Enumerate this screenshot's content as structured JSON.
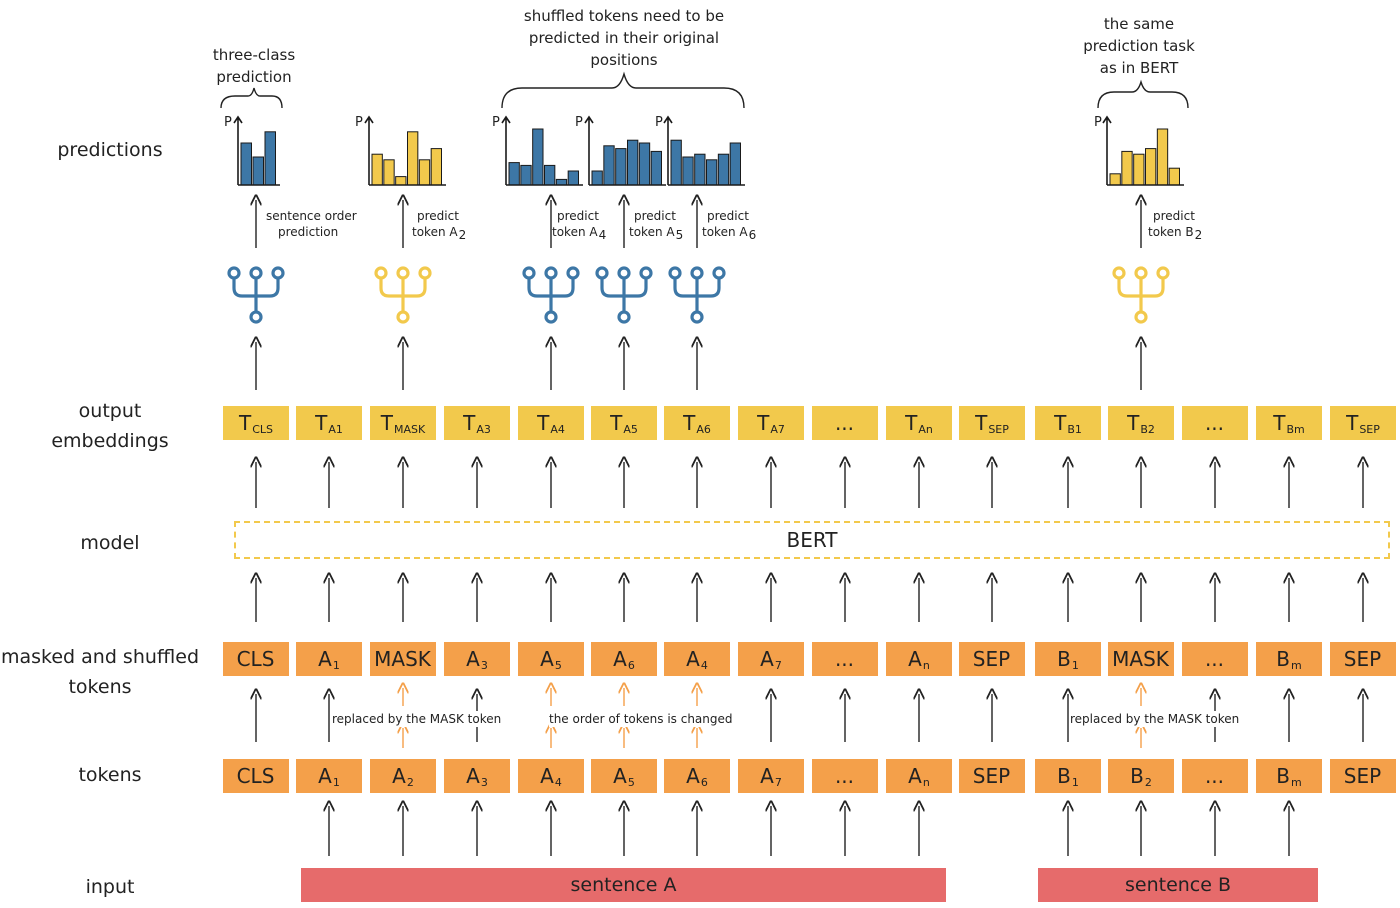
{
  "row_labels": {
    "predictions": "predictions",
    "output": [
      "output",
      "embeddings"
    ],
    "model": "model",
    "masked": [
      "masked and shuffled",
      "tokens"
    ],
    "tokens": "tokens",
    "input": "input"
  },
  "notes": {
    "three_class": [
      "three-class",
      "prediction"
    ],
    "shuffled": [
      "shuffled tokens need to be",
      "predicted in their original",
      "positions"
    ],
    "same_task": [
      "the same",
      "prediction task",
      "as in BERT"
    ]
  },
  "head_labels": {
    "sop": [
      "sentence order",
      "prediction"
    ],
    "a2": [
      "predict",
      "token A",
      "2"
    ],
    "a4": [
      "predict",
      "token A",
      "4"
    ],
    "a5": [
      "predict",
      "token A",
      "5"
    ],
    "a6": [
      "predict",
      "token A",
      "6"
    ],
    "b2": [
      "predict",
      "token B",
      "2"
    ]
  },
  "p_label": "P",
  "model_label": "BERT",
  "output_embeddings": [
    {
      "main": "T",
      "sub": "CLS"
    },
    {
      "main": "T",
      "sub": "A1"
    },
    {
      "main": "T",
      "sub": "MASK"
    },
    {
      "main": "T",
      "sub": "A3"
    },
    {
      "main": "T",
      "sub": "A4"
    },
    {
      "main": "T",
      "sub": "A5"
    },
    {
      "main": "T",
      "sub": "A6"
    },
    {
      "main": "T",
      "sub": "A7"
    },
    {
      "main": "...",
      "sub": ""
    },
    {
      "main": "T",
      "sub": "An"
    },
    {
      "main": "T",
      "sub": "SEP"
    },
    {
      "main": "T",
      "sub": "B1"
    },
    {
      "main": "T",
      "sub": "B2"
    },
    {
      "main": "...",
      "sub": ""
    },
    {
      "main": "T",
      "sub": "Bm"
    },
    {
      "main": "T",
      "sub": "SEP"
    }
  ],
  "masked_tokens": [
    {
      "main": "CLS",
      "sub": ""
    },
    {
      "main": "A",
      "sub": "1"
    },
    {
      "main": "MASK",
      "sub": ""
    },
    {
      "main": "A",
      "sub": "3"
    },
    {
      "main": "A",
      "sub": "5"
    },
    {
      "main": "A",
      "sub": "6"
    },
    {
      "main": "A",
      "sub": "4"
    },
    {
      "main": "A",
      "sub": "7"
    },
    {
      "main": "...",
      "sub": ""
    },
    {
      "main": "A",
      "sub": "n"
    },
    {
      "main": "SEP",
      "sub": ""
    },
    {
      "main": "B",
      "sub": "1"
    },
    {
      "main": "MASK",
      "sub": ""
    },
    {
      "main": "...",
      "sub": ""
    },
    {
      "main": "B",
      "sub": "m"
    },
    {
      "main": "SEP",
      "sub": ""
    }
  ],
  "tokens": [
    {
      "main": "CLS",
      "sub": ""
    },
    {
      "main": "A",
      "sub": "1"
    },
    {
      "main": "A",
      "sub": "2"
    },
    {
      "main": "A",
      "sub": "3"
    },
    {
      "main": "A",
      "sub": "4"
    },
    {
      "main": "A",
      "sub": "5"
    },
    {
      "main": "A",
      "sub": "6"
    },
    {
      "main": "A",
      "sub": "7"
    },
    {
      "main": "...",
      "sub": ""
    },
    {
      "main": "A",
      "sub": "n"
    },
    {
      "main": "SEP",
      "sub": ""
    },
    {
      "main": "B",
      "sub": "1"
    },
    {
      "main": "B",
      "sub": "2"
    },
    {
      "main": "...",
      "sub": ""
    },
    {
      "main": "B",
      "sub": "m"
    },
    {
      "main": "SEP",
      "sub": ""
    }
  ],
  "between_labels": {
    "mask_a": "replaced by the MASK token",
    "shuffle": "the order of tokens is changed",
    "mask_b": "replaced by the MASK token"
  },
  "sentences": {
    "a": "sentence A",
    "b": "sentence B"
  },
  "colors": {
    "blue": "#3d77a6",
    "yellow": "#f2c94c",
    "orange": "#f4a04a",
    "red": "#e66b6b"
  },
  "icons": {
    "head": "classifier-head-icon",
    "bars": "probability-bar-chart-icon"
  }
}
